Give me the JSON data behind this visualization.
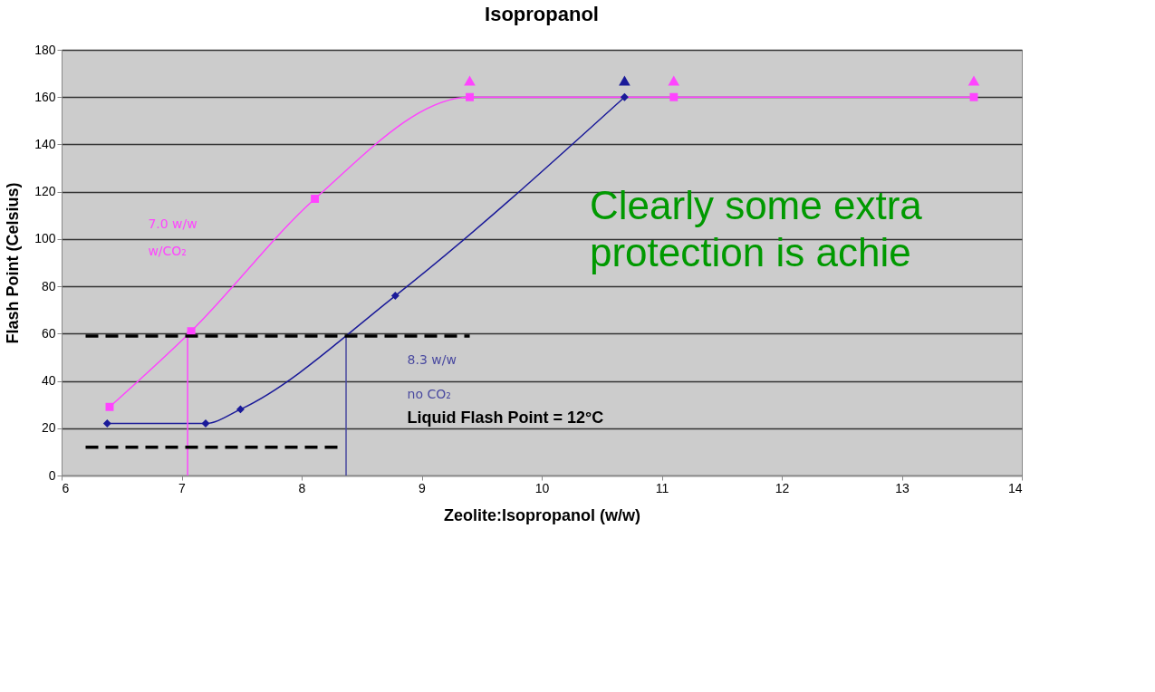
{
  "chart_data": {
    "type": "line",
    "title": "Isopropanol",
    "xlabel": "Zeolite:Isopropanol (w/w)",
    "ylabel": "Flash Point (Celsius)",
    "xlim": [
      6,
      14
    ],
    "xticks": [
      6,
      7,
      8,
      9,
      10,
      11,
      12,
      13,
      14
    ],
    "ylim": [
      0,
      180
    ],
    "yticks": [
      0,
      20,
      40,
      60,
      80,
      100,
      120,
      140,
      160,
      180
    ],
    "grid": "y",
    "series": [
      {
        "color": "#ff44ff",
        "marker": "square",
        "x": [
          6.4,
          7.08,
          8.11,
          9.4,
          11.1,
          13.6
        ],
        "values": [
          29,
          61,
          117,
          160,
          160,
          160
        ]
      },
      {
        "color": "#1a1a99",
        "marker": "diamond",
        "x": [
          6.38,
          7.2,
          7.49,
          8.78,
          10.69
        ],
        "values": [
          22,
          22,
          28,
          76,
          160
        ]
      },
      {
        "type": "scatter",
        "color": "#ff44ff",
        "marker": "triangle",
        "x": [
          9.4,
          11.1,
          13.6
        ],
        "values": [
          167,
          167,
          167
        ]
      },
      {
        "type": "scatter",
        "color": "#1a1a99",
        "marker": "triangle",
        "x": [
          10.69
        ],
        "values": [
          167
        ]
      },
      {
        "type": "line",
        "color": "#ff44ff",
        "marker": "none",
        "x": [
          7.05,
          7.05
        ],
        "values": [
          61,
          0
        ]
      },
      {
        "type": "line",
        "color": "#4a4aa0",
        "marker": "none",
        "x": [
          8.37,
          8.37
        ],
        "values": [
          59,
          0
        ]
      },
      {
        "type": "line",
        "color": "#000000",
        "marker": "none",
        "line_style": "dashed",
        "x": [
          6.2,
          9.4
        ],
        "values": [
          59,
          59
        ]
      },
      {
        "type": "line",
        "color": "#000000",
        "marker": "none",
        "line_style": "dashed",
        "x": [
          6.2,
          8.3
        ],
        "values": [
          12,
          12
        ]
      }
    ],
    "annotations": [
      "7.0 w/w",
      "w/CO₂",
      "8.3 w/w",
      "no CO₂",
      "Liquid Flash Point = 12°C",
      "Clearly some extra",
      "protection is achie"
    ]
  }
}
